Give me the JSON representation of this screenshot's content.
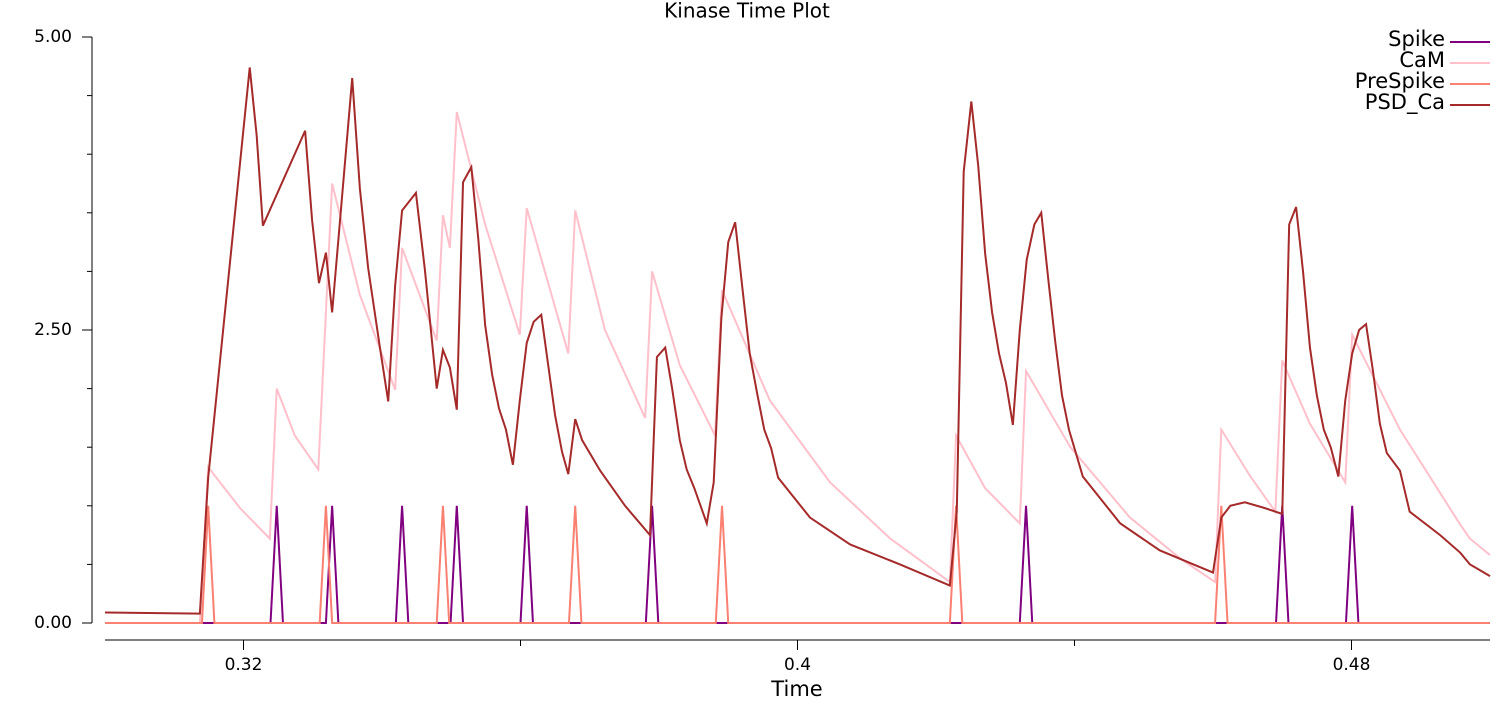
{
  "chart_data": {
    "type": "line",
    "title": "Kinase Time Plot",
    "x_label": "Time",
    "xlim": [
      0.3,
      0.5
    ],
    "ylim": [
      0,
      5
    ],
    "xticks": [
      0.32,
      0.4,
      0.48
    ],
    "x_minor_ticks": [
      0.36,
      0.44
    ],
    "yticks": [
      {
        "value": 0,
        "label": "0.00"
      },
      {
        "value": 2.5,
        "label": "2.50"
      },
      {
        "value": 5,
        "label": "5.00"
      }
    ],
    "y_minor_ticks": [
      0.5,
      1,
      1.5,
      2,
      3,
      3.5,
      4,
      4.5
    ],
    "legend": "top-right",
    "series": [
      {
        "name": "Spike",
        "color": "#800080",
        "x": [
          0.3,
          0.3239,
          0.3248,
          0.3257,
          0.3319,
          0.3328,
          0.3337,
          0.342,
          0.3429,
          0.3438,
          0.3499,
          0.3508,
          0.3517,
          0.36,
          0.3609,
          0.3618,
          0.3781,
          0.379,
          0.3799,
          0.4321,
          0.433,
          0.4339,
          0.4691,
          0.47,
          0.4709,
          0.4792,
          0.4801,
          0.481,
          0.5
        ],
        "values": [
          0,
          0,
          1,
          0,
          0,
          1,
          0,
          0,
          1,
          0,
          0,
          1,
          0,
          0,
          1,
          0,
          0,
          1,
          0,
          0,
          1,
          0,
          0,
          1,
          0,
          0,
          1,
          0,
          0
        ]
      },
      {
        "name": "CaM",
        "color": "#ffc0cb",
        "x": [
          0.3,
          0.3137,
          0.3149,
          0.3195,
          0.3238,
          0.3248,
          0.3274,
          0.3308,
          0.3328,
          0.3368,
          0.3419,
          0.3429,
          0.3479,
          0.3488,
          0.3498,
          0.3508,
          0.3549,
          0.3599,
          0.3609,
          0.3669,
          0.3679,
          0.3722,
          0.378,
          0.379,
          0.383,
          0.3881,
          0.3891,
          0.396,
          0.4047,
          0.4134,
          0.422,
          0.4229,
          0.4271,
          0.4321,
          0.433,
          0.4394,
          0.448,
          0.4553,
          0.4603,
          0.4612,
          0.4654,
          0.469,
          0.47,
          0.474,
          0.4791,
          0.4801,
          0.487,
          0.4957,
          0.4971,
          0.5
        ],
        "values": [
          0,
          0,
          1.33,
          0.98,
          0.72,
          2.0,
          1.6,
          1.31,
          3.75,
          2.8,
          1.99,
          3.2,
          2.41,
          3.48,
          3.2,
          4.36,
          3.4,
          2.46,
          3.54,
          2.3,
          3.52,
          2.5,
          1.75,
          3.0,
          2.2,
          1.6,
          2.84,
          1.9,
          1.2,
          0.72,
          0.35,
          1.6,
          1.15,
          0.85,
          2.15,
          1.5,
          0.9,
          0.55,
          0.35,
          1.65,
          1.25,
          0.95,
          2.24,
          1.7,
          1.2,
          2.46,
          1.65,
          0.84,
          0.72,
          0.58
        ]
      },
      {
        "name": "PreSpike",
        "color": "#fa8072",
        "x": [
          0.3,
          0.314,
          0.3149,
          0.3158,
          0.331,
          0.3319,
          0.3328,
          0.3479,
          0.3488,
          0.3497,
          0.367,
          0.3679,
          0.3688,
          0.3882,
          0.3891,
          0.39,
          0.422,
          0.4229,
          0.4238,
          0.4603,
          0.4612,
          0.4621,
          0.5
        ],
        "values": [
          0,
          0,
          1,
          0,
          0,
          1,
          0,
          0,
          1,
          0,
          0,
          1,
          0,
          0,
          1,
          0,
          0,
          1,
          0,
          0,
          1,
          0,
          0
        ]
      },
      {
        "name": "PSD_Ca",
        "color": "#a52a2a",
        "x": [
          0.3,
          0.3137,
          0.3149,
          0.3209,
          0.3219,
          0.3228,
          0.3289,
          0.3299,
          0.3309,
          0.3319,
          0.3328,
          0.3357,
          0.3368,
          0.338,
          0.3397,
          0.3409,
          0.3419,
          0.3429,
          0.3449,
          0.3462,
          0.3479,
          0.3488,
          0.3498,
          0.3508,
          0.3517,
          0.3529,
          0.3539,
          0.3549,
          0.3559,
          0.3569,
          0.3579,
          0.3589,
          0.3599,
          0.3609,
          0.3619,
          0.363,
          0.364,
          0.365,
          0.366,
          0.3669,
          0.3679,
          0.3689,
          0.3715,
          0.3751,
          0.3787,
          0.3797,
          0.3809,
          0.3819,
          0.383,
          0.384,
          0.3851,
          0.3869,
          0.3879,
          0.389,
          0.39,
          0.391,
          0.392,
          0.3931,
          0.3942,
          0.3952,
          0.3962,
          0.3972,
          0.4018,
          0.4076,
          0.4148,
          0.422,
          0.423,
          0.424,
          0.4251,
          0.4261,
          0.4271,
          0.4281,
          0.4291,
          0.4301,
          0.4311,
          0.4321,
          0.4331,
          0.4342,
          0.4352,
          0.4362,
          0.4372,
          0.4382,
          0.4392,
          0.4402,
          0.4412,
          0.4466,
          0.4523,
          0.46,
          0.4612,
          0.4625,
          0.4646,
          0.4675,
          0.47,
          0.471,
          0.472,
          0.473,
          0.474,
          0.475,
          0.476,
          0.477,
          0.4781,
          0.4791,
          0.4801,
          0.4811,
          0.4821,
          0.4831,
          0.4841,
          0.4851,
          0.487,
          0.4884,
          0.4928,
          0.4957,
          0.4971,
          0.5
        ],
        "values": [
          0.09,
          0.08,
          1.24,
          4.74,
          4.16,
          3.39,
          4.2,
          3.44,
          2.9,
          3.16,
          2.65,
          4.65,
          3.71,
          3.03,
          2.35,
          1.89,
          2.88,
          3.52,
          3.67,
          3.01,
          2.0,
          2.33,
          2.18,
          1.82,
          3.76,
          3.89,
          3.28,
          2.54,
          2.12,
          1.83,
          1.65,
          1.35,
          1.9,
          2.39,
          2.57,
          2.63,
          2.2,
          1.77,
          1.46,
          1.27,
          1.74,
          1.56,
          1.3,
          1.0,
          0.75,
          2.27,
          2.35,
          2.0,
          1.56,
          1.31,
          1.15,
          0.85,
          1.2,
          2.6,
          3.25,
          3.42,
          2.88,
          2.3,
          1.95,
          1.65,
          1.49,
          1.24,
          0.9,
          0.67,
          0.5,
          0.32,
          0.95,
          3.85,
          4.45,
          3.9,
          3.15,
          2.65,
          2.3,
          2.05,
          1.69,
          2.5,
          3.1,
          3.4,
          3.5,
          2.94,
          2.41,
          1.94,
          1.65,
          1.45,
          1.25,
          0.85,
          0.62,
          0.43,
          0.9,
          1.0,
          1.03,
          0.98,
          0.93,
          3.4,
          3.55,
          3.0,
          2.35,
          1.94,
          1.65,
          1.5,
          1.25,
          1.9,
          2.3,
          2.5,
          2.55,
          2.15,
          1.7,
          1.45,
          1.3,
          0.95,
          0.75,
          0.6,
          0.5,
          0.4
        ]
      }
    ]
  }
}
